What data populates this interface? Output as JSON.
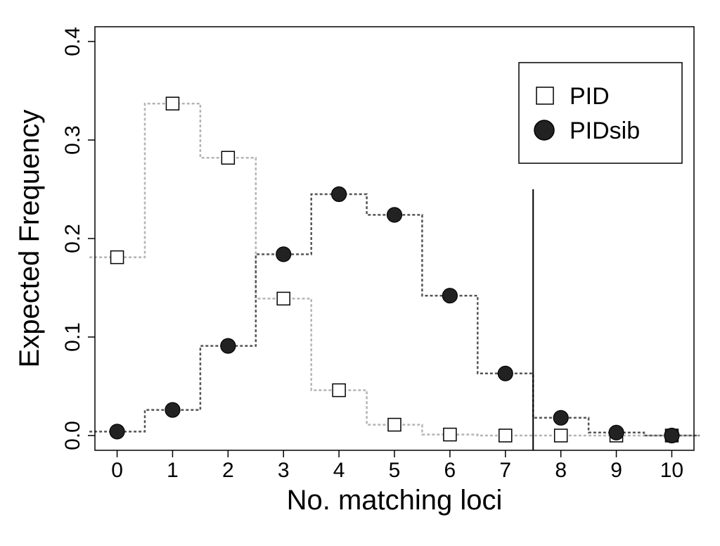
{
  "chart_data": {
    "type": "step-line-scatter",
    "xlabel": "No. matching loci",
    "ylabel": "Expected Frequency",
    "x": [
      0,
      1,
      2,
      3,
      4,
      5,
      6,
      7,
      8,
      9,
      10
    ],
    "x_tick_labels": [
      "0",
      "1",
      "2",
      "3",
      "4",
      "5",
      "6",
      "7",
      "8",
      "9",
      "10"
    ],
    "xlim": [
      -0.4,
      10.4
    ],
    "ylim": [
      -0.015,
      0.415
    ],
    "y_ticks": [
      0.0,
      0.1,
      0.2,
      0.3,
      0.4
    ],
    "y_tick_labels": [
      "0.0",
      "0.1",
      "0.2",
      "0.3",
      "0.4"
    ],
    "series": [
      {
        "name": "PID",
        "marker": "open-square",
        "line_color": "#b5b5b5",
        "marker_fill": "#ffffff",
        "values": [
          0.181,
          0.337,
          0.282,
          0.139,
          0.046,
          0.011,
          0.001,
          0.0,
          0.0,
          0.0,
          0.0
        ]
      },
      {
        "name": "PIDsib",
        "marker": "filled-circle",
        "line_color": "#555555",
        "marker_fill": "#222222",
        "values": [
          0.004,
          0.026,
          0.091,
          0.184,
          0.245,
          0.224,
          0.142,
          0.063,
          0.018,
          0.003,
          0.0
        ]
      }
    ],
    "reference_line": {
      "x": 7.5,
      "y_top": 0.25,
      "color": "#000000"
    },
    "legend": {
      "position": "top-right",
      "entries": [
        "PID",
        "PIDsib"
      ]
    },
    "grid": false
  }
}
